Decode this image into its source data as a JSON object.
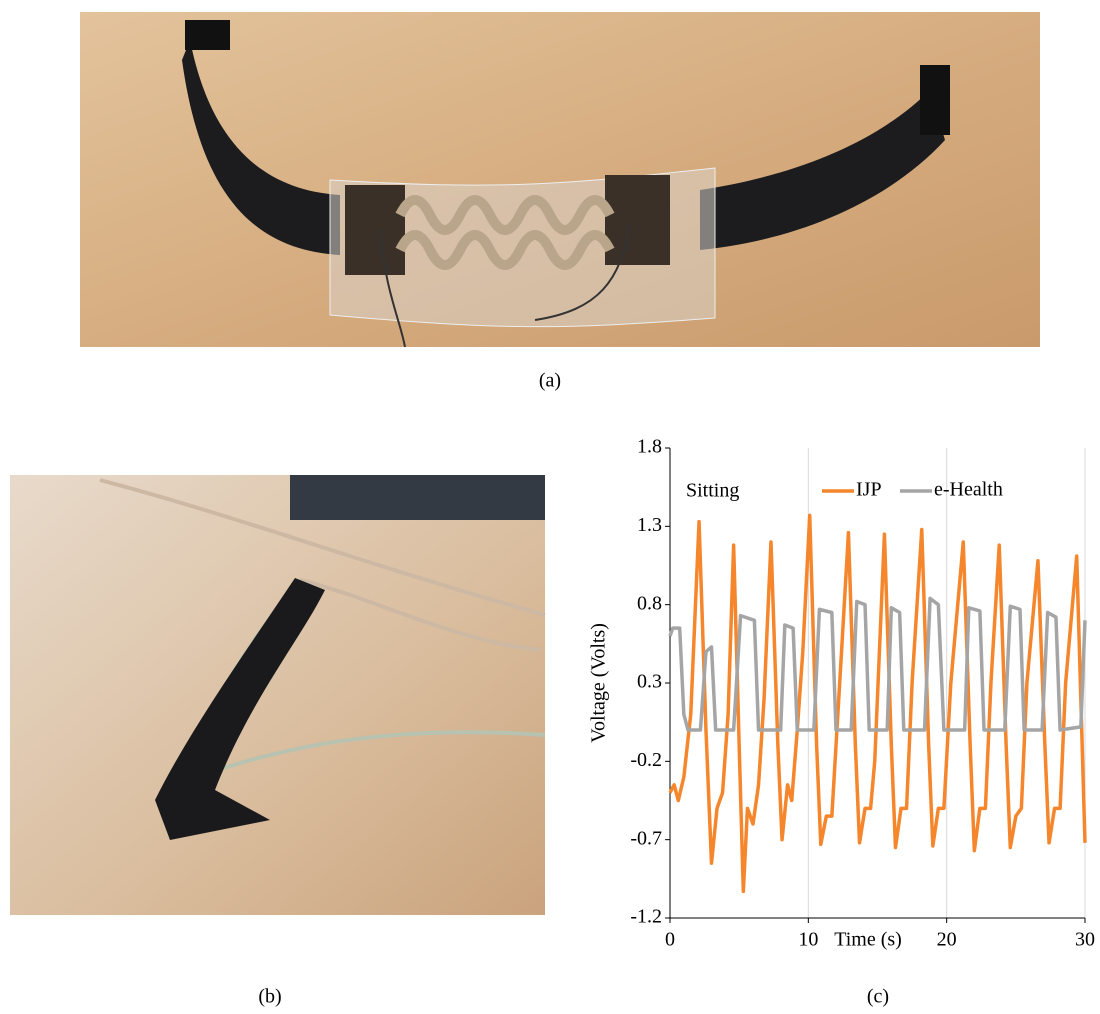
{
  "captions": [
    "(a)",
    "(b)",
    "(c)"
  ],
  "chart_data": {
    "type": "line",
    "annotation": "Sitting",
    "x_label": "Time (s)",
    "y_label": "Voltage (Volts)",
    "xlim": [
      0,
      30
    ],
    "ylim": [
      -1.2,
      1.8
    ],
    "xticks": [
      0,
      10,
      20,
      30
    ],
    "yticks": [
      -1.2,
      -0.7,
      -0.2,
      0.3,
      0.8,
      1.3,
      1.8
    ],
    "grid": "x",
    "legend": "top-right",
    "series": [
      {
        "name": "IJP",
        "color": "#f5862c",
        "x": [
          0,
          0.3,
          0.6,
          1.0,
          1.5,
          2.1,
          2.6,
          3.0,
          3.4,
          3.8,
          4.2,
          4.6,
          5.0,
          5.3,
          5.6,
          6.0,
          6.4,
          6.8,
          7.3,
          7.8,
          8.1,
          8.5,
          8.8,
          9.2,
          9.6,
          10.1,
          10.6,
          10.9,
          11.3,
          11.7,
          12.0,
          12.4,
          12.9,
          13.4,
          13.7,
          14.1,
          14.5,
          14.8,
          15.5,
          16.0,
          16.3,
          16.7,
          17.1,
          17.5,
          18.2,
          18.7,
          19.0,
          19.4,
          19.8,
          20.3,
          21.2,
          21.7,
          22.0,
          22.4,
          22.8,
          23.2,
          23.8,
          24.3,
          24.6,
          25.0,
          25.4,
          25.8,
          26.6,
          27.1,
          27.4,
          27.8,
          28.2,
          28.6,
          29.4,
          30
        ],
        "values": [
          -0.4,
          -0.35,
          -0.45,
          -0.3,
          0.1,
          1.33,
          0,
          -0.85,
          -0.5,
          -0.4,
          0.1,
          1.18,
          -0.1,
          -1.03,
          -0.5,
          -0.6,
          -0.35,
          0.2,
          1.2,
          -0.1,
          -0.7,
          -0.35,
          -0.45,
          0,
          0.5,
          1.37,
          -0.1,
          -0.73,
          -0.55,
          -0.55,
          -0.1,
          0.5,
          1.26,
          -0.1,
          -0.72,
          -0.5,
          -0.5,
          -0.2,
          1.25,
          -0.1,
          -0.75,
          -0.5,
          -0.5,
          0.3,
          1.28,
          -0.1,
          -0.74,
          -0.5,
          -0.5,
          0.3,
          1.2,
          -0.1,
          -0.77,
          -0.5,
          -0.5,
          0.3,
          1.18,
          -0.1,
          -0.75,
          -0.55,
          -0.5,
          0.3,
          1.08,
          -0.1,
          -0.72,
          -0.5,
          -0.5,
          0.3,
          1.11,
          -0.72
        ]
      },
      {
        "name": "e-Health",
        "color": "#a5a5a5",
        "x": [
          0,
          0.2,
          0.7,
          1.0,
          1.3,
          2.2,
          2.6,
          3.0,
          3.3,
          4.6,
          5.1,
          6.1,
          6.4,
          8.0,
          8.3,
          8.9,
          9.2,
          10.4,
          10.8,
          11.7,
          12.0,
          13.1,
          13.5,
          14.1,
          14.4,
          15.7,
          16.0,
          16.6,
          16.9,
          18.4,
          18.8,
          19.4,
          19.8,
          21.3,
          21.6,
          22.4,
          22.7,
          24.2,
          24.6,
          25.3,
          25.6,
          26.9,
          27.3,
          27.9,
          28.2,
          29.7,
          30
        ],
        "values": [
          0.6,
          0.65,
          0.65,
          0.1,
          0,
          0,
          0.5,
          0.53,
          0,
          0,
          0.73,
          0.7,
          0,
          0,
          0.67,
          0.65,
          0,
          0,
          0.77,
          0.75,
          0,
          0,
          0.82,
          0.8,
          0,
          0,
          0.78,
          0.75,
          0,
          0,
          0.84,
          0.8,
          0,
          0,
          0.78,
          0.76,
          0,
          0,
          0.79,
          0.77,
          0,
          0,
          0.75,
          0.72,
          0,
          0.02,
          0.7
        ]
      }
    ]
  }
}
